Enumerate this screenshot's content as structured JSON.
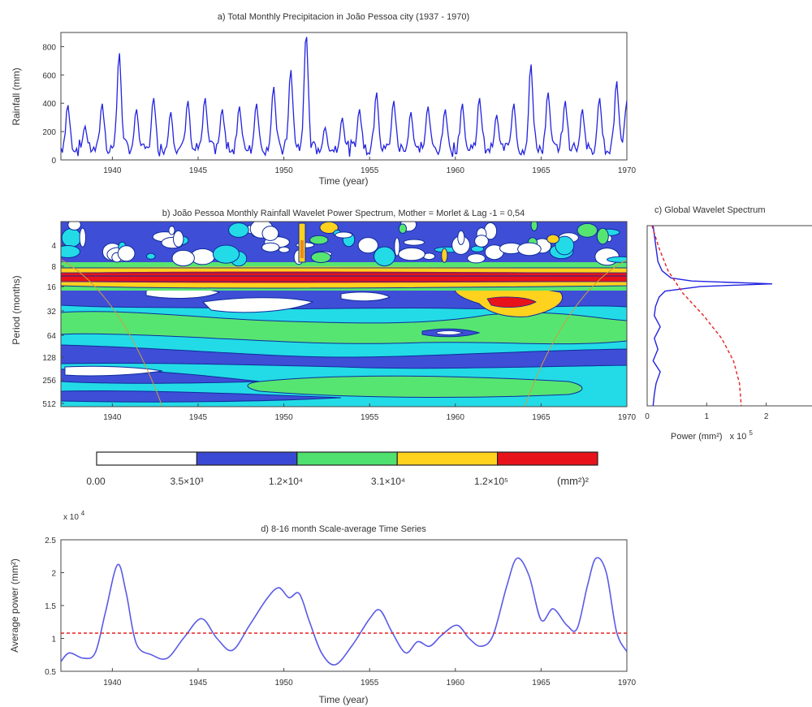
{
  "panel_a": {
    "title": "a) Total Monthly Precipitacion in João Pessoa city (1937 - 1970)",
    "xlabel": "Time (year)",
    "ylabel": "Rainfall (mm)"
  },
  "panel_b": {
    "title": "b) João Pessoa Monthly Rainfall Wavelet Power Spectrum, Mother = Morlet & Lag -1 = 0,54",
    "ylabel": "Period (months)"
  },
  "panel_c": {
    "title": "c) Global Wavelet Spectrum",
    "xlabel": "Power (mm²)",
    "xlabel_mult": "x 10",
    "xlabel_exp": "5"
  },
  "colorbar": {
    "unit": "(mm²)²",
    "colors": [
      "#ffffff",
      "#3a49d4",
      "#4fe070",
      "#ffd21e",
      "#e8121a"
    ],
    "labels": [
      "0.00",
      "3.5×10³",
      "1.2×10⁴",
      "3.1×10⁴",
      "1.2×10⁵"
    ]
  },
  "panel_d": {
    "title": "d) 8-16 month Scale-average Time Series",
    "xlabel": "Time (year)",
    "ylabel": "Average power (mm²)",
    "exponent_label": "x 10",
    "exponent": "4"
  },
  "chart_data": [
    {
      "type": "line",
      "title": "a) Total Monthly Precipitacion in João Pessoa city (1937 - 1970)",
      "xlabel": "Time (year)",
      "ylabel": "Rainfall (mm)",
      "xlim": [
        1937,
        1970
      ],
      "ylim": [
        0,
        900
      ],
      "xticks": [
        1940,
        1945,
        1950,
        1955,
        1960,
        1965,
        1970
      ],
      "yticks": [
        0,
        200,
        400,
        600,
        800
      ],
      "series_color": "#2323e0",
      "annual_peaks": [
        {
          "year": 1937.4,
          "value": 390
        },
        {
          "year": 1938.4,
          "value": 240
        },
        {
          "year": 1939.4,
          "value": 400
        },
        {
          "year": 1940.4,
          "value": 760
        },
        {
          "year": 1941.4,
          "value": 360
        },
        {
          "year": 1942.4,
          "value": 440
        },
        {
          "year": 1943.4,
          "value": 340
        },
        {
          "year": 1944.4,
          "value": 420
        },
        {
          "year": 1945.4,
          "value": 440
        },
        {
          "year": 1946.4,
          "value": 360
        },
        {
          "year": 1947.4,
          "value": 380
        },
        {
          "year": 1948.4,
          "value": 400
        },
        {
          "year": 1949.4,
          "value": 520
        },
        {
          "year": 1950.4,
          "value": 640
        },
        {
          "year": 1951.3,
          "value": 900
        },
        {
          "year": 1952.4,
          "value": 230
        },
        {
          "year": 1953.4,
          "value": 300
        },
        {
          "year": 1954.4,
          "value": 360
        },
        {
          "year": 1955.4,
          "value": 480
        },
        {
          "year": 1956.4,
          "value": 420
        },
        {
          "year": 1957.4,
          "value": 340
        },
        {
          "year": 1958.4,
          "value": 380
        },
        {
          "year": 1959.4,
          "value": 360
        },
        {
          "year": 1960.4,
          "value": 400
        },
        {
          "year": 1961.4,
          "value": 440
        },
        {
          "year": 1962.4,
          "value": 320
        },
        {
          "year": 1963.4,
          "value": 400
        },
        {
          "year": 1964.4,
          "value": 680
        },
        {
          "year": 1965.4,
          "value": 480
        },
        {
          "year": 1966.4,
          "value": 420
        },
        {
          "year": 1967.4,
          "value": 360
        },
        {
          "year": 1968.4,
          "value": 440
        },
        {
          "year": 1969.4,
          "value": 560
        },
        {
          "year": 1970.0,
          "value": 420
        }
      ]
    },
    {
      "type": "heatmap",
      "title": "b) João Pessoa Monthly Rainfall Wavelet Power Spectrum, Mother = Morlet & Lag -1 = 0,54",
      "ylabel": "Period (months)",
      "xlim": [
        1937,
        1970
      ],
      "xticks": [
        1940,
        1945,
        1950,
        1955,
        1960,
        1965,
        1970
      ],
      "yticks": [
        "4",
        "8",
        "16",
        "32",
        "64",
        "128",
        "256",
        "512"
      ],
      "y_scale": "log2",
      "levels": [
        0,
        3500,
        12000,
        31000,
        120000
      ]
    },
    {
      "type": "line",
      "title": "c) Global Wavelet Spectrum",
      "xlabel": "Power (mm²) x 10⁵",
      "xlim": [
        0,
        3
      ],
      "xticks": [
        0,
        1,
        2
      ],
      "series": [
        {
          "style": "solid",
          "color": "#2323e0",
          "points": [
            [
              0.1,
              2
            ],
            [
              0.15,
              4
            ],
            [
              0.18,
              6
            ],
            [
              0.25,
              8
            ],
            [
              0.4,
              10
            ],
            [
              0.75,
              11
            ],
            [
              2.1,
              12
            ],
            [
              0.9,
              13
            ],
            [
              0.3,
              15
            ],
            [
              0.2,
              18
            ],
            [
              0.14,
              24
            ],
            [
              0.12,
              32
            ],
            [
              0.22,
              45
            ],
            [
              0.12,
              64
            ],
            [
              0.18,
              90
            ],
            [
              0.1,
              128
            ],
            [
              0.22,
              180
            ],
            [
              0.15,
              256
            ],
            [
              0.12,
              360
            ],
            [
              0.1,
              512
            ]
          ]
        },
        {
          "style": "dashed",
          "color": "#e82020",
          "points": [
            [
              0.08,
              2
            ],
            [
              0.2,
              4
            ],
            [
              0.35,
              8
            ],
            [
              0.6,
              16
            ],
            [
              0.95,
              32
            ],
            [
              1.25,
              64
            ],
            [
              1.45,
              128
            ],
            [
              1.55,
              256
            ],
            [
              1.58,
              512
            ]
          ]
        }
      ]
    },
    {
      "type": "line",
      "title": "d) 8-16 month Scale-average Time Series",
      "xlabel": "Time (year)",
      "ylabel": "Average power (mm²)",
      "ylim": [
        0.5,
        2.5
      ],
      "y_multiplier": "x 10^4",
      "xlim": [
        1937,
        1970
      ],
      "xticks": [
        1940,
        1945,
        1950,
        1955,
        1960,
        1965,
        1970
      ],
      "yticks": [
        0.5,
        1,
        1.5,
        2,
        2.5
      ],
      "series": [
        {
          "style": "solid",
          "color": "#5a5ae8",
          "points": [
            [
              1937.0,
              0.65
            ],
            [
              1937.5,
              0.78
            ],
            [
              1938.3,
              0.7
            ],
            [
              1939.0,
              0.78
            ],
            [
              1939.6,
              1.4
            ],
            [
              1940.3,
              2.12
            ],
            [
              1940.8,
              1.7
            ],
            [
              1941.4,
              0.92
            ],
            [
              1942.3,
              0.75
            ],
            [
              1943.2,
              0.7
            ],
            [
              1944.2,
              1.02
            ],
            [
              1945.2,
              1.3
            ],
            [
              1946.1,
              1.0
            ],
            [
              1947.0,
              0.82
            ],
            [
              1948.0,
              1.2
            ],
            [
              1949.0,
              1.6
            ],
            [
              1949.7,
              1.77
            ],
            [
              1950.3,
              1.62
            ],
            [
              1950.9,
              1.68
            ],
            [
              1951.5,
              1.25
            ],
            [
              1952.2,
              0.78
            ],
            [
              1953.0,
              0.6
            ],
            [
              1954.0,
              0.9
            ],
            [
              1955.0,
              1.3
            ],
            [
              1955.6,
              1.43
            ],
            [
              1956.3,
              1.1
            ],
            [
              1957.1,
              0.78
            ],
            [
              1957.8,
              0.95
            ],
            [
              1958.5,
              0.88
            ],
            [
              1959.2,
              1.05
            ],
            [
              1960.1,
              1.2
            ],
            [
              1960.8,
              1.0
            ],
            [
              1961.5,
              0.88
            ],
            [
              1962.2,
              1.05
            ],
            [
              1963.0,
              1.8
            ],
            [
              1963.6,
              2.22
            ],
            [
              1964.3,
              1.95
            ],
            [
              1965.0,
              1.28
            ],
            [
              1965.7,
              1.45
            ],
            [
              1966.5,
              1.2
            ],
            [
              1967.1,
              1.15
            ],
            [
              1967.7,
              1.8
            ],
            [
              1968.2,
              2.22
            ],
            [
              1968.8,
              2.0
            ],
            [
              1969.4,
              1.1
            ],
            [
              1970.0,
              0.8
            ]
          ]
        },
        {
          "style": "dashed",
          "color": "#e82020",
          "constant": 1.08
        }
      ]
    }
  ]
}
